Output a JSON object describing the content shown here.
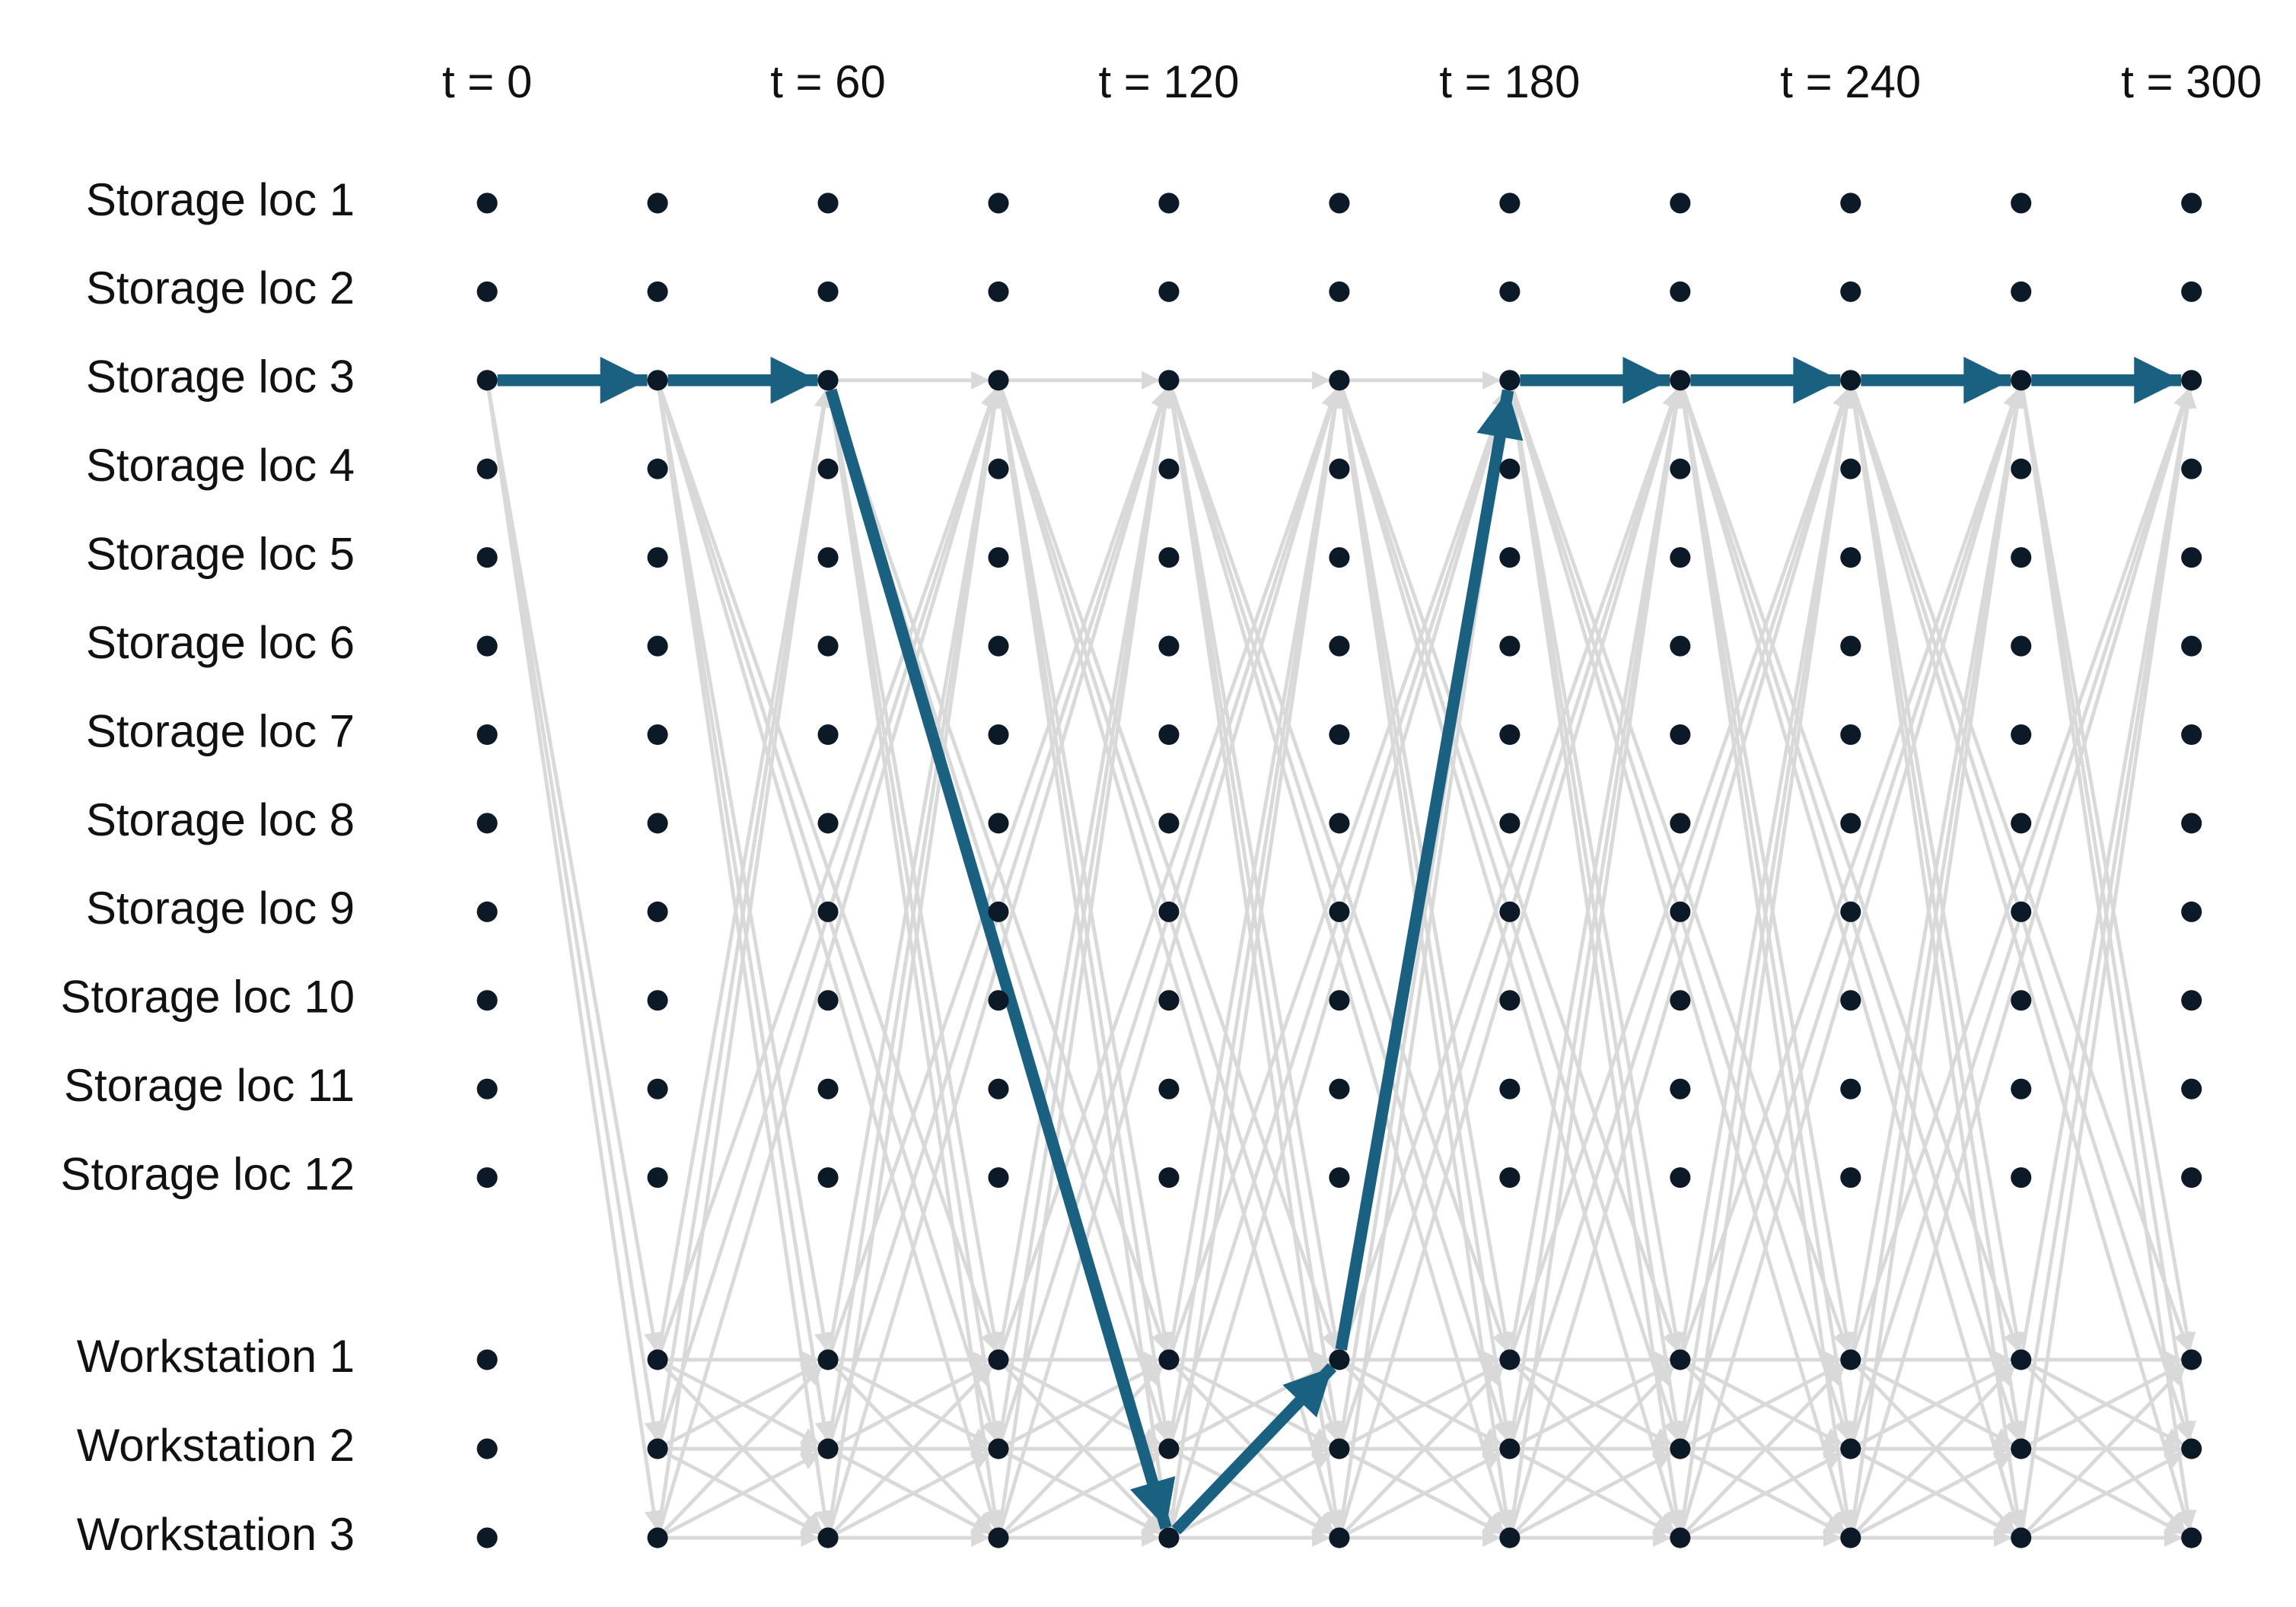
{
  "header": {
    "time_labels": [
      "t = 0",
      "t = 60",
      "t = 120",
      "t = 180",
      "t = 240",
      "t = 300"
    ]
  },
  "rows": {
    "labels": [
      "Storage loc 1",
      "Storage loc 2",
      "Storage loc 3",
      "Storage loc 4",
      "Storage loc 5",
      "Storage loc 6",
      "Storage loc 7",
      "Storage loc 8",
      "Storage loc 9",
      "Storage loc 10",
      "Storage loc 11",
      "Storage loc 12",
      "Workstation 1",
      "Workstation 2",
      "Workstation 3"
    ]
  }
}
